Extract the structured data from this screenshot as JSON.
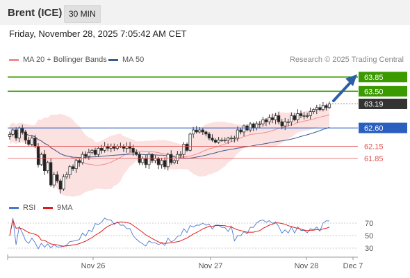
{
  "header": {
    "title": "Brent (ICE)",
    "timeframe": "30 MIN"
  },
  "date_line": "Friday, November 28, 2025 7:05:42 AM CET",
  "legend": [
    {
      "label": "MA 20 + Bollinger Bands",
      "color": "#f28b8b"
    },
    {
      "label": "MA 50",
      "color": "#3a5a8c"
    }
  ],
  "credit": "Research © 2025 Trading Central",
  "rsi_legend": [
    {
      "label": "RSI",
      "color": "#4a78d0"
    },
    {
      "label": "9MA",
      "color": "#e31a1a"
    }
  ],
  "colors": {
    "target": "#3a9a00",
    "pivot": "#2a5fbf",
    "support": "#e05050",
    "last": "#333333",
    "up": "#aaaaaa",
    "down": "#222222",
    "arrow": "#2b5fa8"
  },
  "chart_data": {
    "type": "candlestick",
    "ylim": [
      61.1,
      64.0
    ],
    "levels": [
      {
        "value": 63.85,
        "label": "63.85",
        "kind": "target"
      },
      {
        "value": 63.5,
        "label": "63.50",
        "kind": "target"
      },
      {
        "value": 63.19,
        "label": "63.19",
        "kind": "last"
      },
      {
        "value": 62.6,
        "label": "62.60",
        "kind": "pivot"
      },
      {
        "value": 62.15,
        "label": "62.15",
        "kind": "support"
      },
      {
        "value": 61.85,
        "label": "61.85",
        "kind": "support"
      }
    ],
    "x_ticks": [
      "Nov 26",
      "Nov 27",
      "Nov 28",
      "Dec 7"
    ],
    "closes": [
      62.44,
      62.55,
      62.35,
      62.6,
      62.5,
      62.3,
      62.2,
      62.35,
      62.15,
      61.7,
      61.95,
      61.55,
      61.75,
      61.2,
      61.45,
      61.3,
      61.1,
      61.4,
      61.45,
      61.65,
      61.6,
      61.8,
      61.75,
      61.95,
      61.9,
      62.0,
      62.05,
      61.95,
      62.1,
      62.05,
      62.15,
      62.1,
      62.15,
      62.1,
      62.15,
      62.15,
      62.1,
      62.15,
      62.1,
      62.0,
      61.95,
      61.75,
      61.85,
      61.7,
      61.95,
      61.8,
      61.85,
      61.7,
      61.8,
      61.65,
      61.95,
      61.75,
      61.8,
      61.95,
      61.95,
      62.2,
      62.05,
      62.45,
      62.55,
      62.5,
      62.55,
      62.5,
      62.45,
      62.35,
      62.3,
      62.25,
      62.3,
      62.3,
      62.3,
      62.35,
      62.35,
      62.35,
      62.55,
      62.5,
      62.65,
      62.55,
      62.7,
      62.6,
      62.7,
      62.7,
      62.8,
      62.75,
      62.85,
      62.8,
      62.9,
      62.75,
      62.65,
      62.75,
      62.75,
      62.9,
      62.8,
      62.95,
      62.9,
      62.9,
      62.9,
      63.0,
      63.05,
      63.1,
      63.05,
      63.15,
      63.1,
      63.19
    ],
    "rsi": {
      "ticks": [
        70,
        50,
        30
      ]
    }
  }
}
